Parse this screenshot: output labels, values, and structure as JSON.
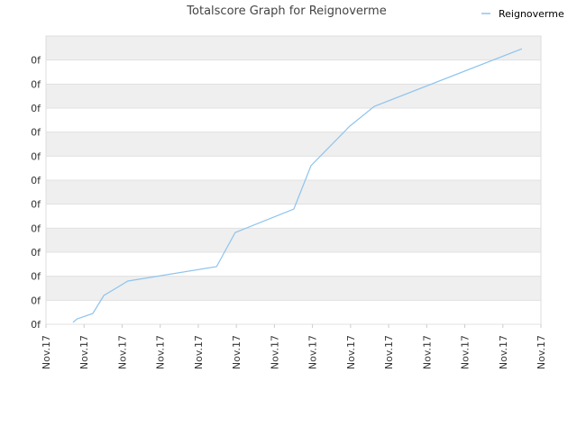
{
  "chart_data": {
    "type": "line",
    "title": "Totalscore Graph for Reignoverme",
    "x": [
      0.71,
      0.81,
      1.23,
      1.52,
      2.15,
      4.48,
      4.97,
      6.51,
      6.96,
      7.98,
      8.62,
      12.5
    ],
    "series": [
      {
        "name": "Reignoverme",
        "color": "#8ec4ee",
        "values": [
          0.08,
          0.22,
          0.45,
          1.2,
          1.8,
          2.4,
          3.82,
          4.8,
          6.6,
          8.25,
          9.07,
          11.47
        ]
      }
    ],
    "xlim": [
      0,
      13
    ],
    "xticks": [
      {
        "value": 0,
        "label": "Nov.17"
      },
      {
        "value": 1,
        "label": "Nov.17"
      },
      {
        "value": 2,
        "label": "Nov.17"
      },
      {
        "value": 3,
        "label": "Nov.17"
      },
      {
        "value": 4,
        "label": "Nov.17"
      },
      {
        "value": 5,
        "label": "Nov.17"
      },
      {
        "value": 6,
        "label": "Nov.17"
      },
      {
        "value": 7,
        "label": "Nov.17"
      },
      {
        "value": 8,
        "label": "Nov.17"
      },
      {
        "value": 9,
        "label": "Nov.17"
      },
      {
        "value": 10,
        "label": "Nov.17"
      },
      {
        "value": 11,
        "label": "Nov.17"
      },
      {
        "value": 12,
        "label": "Nov.17"
      },
      {
        "value": 13,
        "label": "Nov.17"
      }
    ],
    "ylim": [
      0,
      12
    ],
    "yticks": [
      {
        "value": 0,
        "label": "0f"
      },
      {
        "value": 1,
        "label": "0f"
      },
      {
        "value": 2,
        "label": "0f"
      },
      {
        "value": 3,
        "label": "0f"
      },
      {
        "value": 4,
        "label": "0f"
      },
      {
        "value": 5,
        "label": "0f"
      },
      {
        "value": 6,
        "label": "0f"
      },
      {
        "value": 7,
        "label": "0f"
      },
      {
        "value": 8,
        "label": "0f"
      },
      {
        "value": 9,
        "label": "0f"
      },
      {
        "value": 10,
        "label": "0f"
      },
      {
        "value": 11,
        "label": "0f"
      }
    ],
    "grid": true,
    "legend": "top-right"
  }
}
